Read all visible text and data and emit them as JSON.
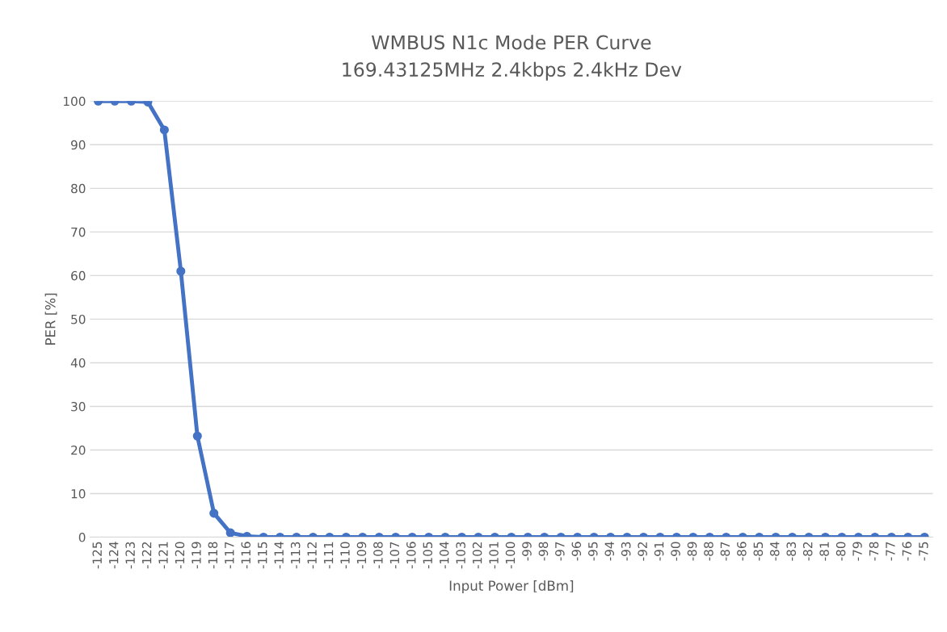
{
  "chart_data": {
    "type": "line",
    "title": "WMBUS N1c Mode PER Curve\n169.43125MHz 2.4kbps 2.4kHz Dev",
    "xlabel": "Input Power [dBm]",
    "ylabel": "PER [%]",
    "categories": [
      "-125",
      "-124",
      "-123",
      "-122",
      "-121",
      "-120",
      "-119",
      "-118",
      "-117",
      "-116",
      "-115",
      "-114",
      "-113",
      "-112",
      "-111",
      "-110",
      "-109",
      "-108",
      "-107",
      "-106",
      "-105",
      "-104",
      "-103",
      "-102",
      "-101",
      "-100",
      "-99",
      "-98",
      "-97",
      "-96",
      "-95",
      "-94",
      "-93",
      "-92",
      "-91",
      "-90",
      "-89",
      "-88",
      "-87",
      "-86",
      "-85",
      "-84",
      "-83",
      "-82",
      "-81",
      "-80",
      "-79",
      "-78",
      "-77",
      "-76",
      "-75"
    ],
    "series": [
      {
        "color": "#4472c4",
        "values": [
          100,
          100,
          100,
          99.8,
          93.4,
          61,
          23.2,
          5.5,
          1,
          0.2,
          0,
          0,
          0,
          0,
          0,
          0,
          0,
          0,
          0,
          0,
          0,
          0,
          0,
          0,
          0,
          0,
          0,
          0,
          0,
          0,
          0,
          0,
          0,
          0,
          0,
          0,
          0,
          0,
          0,
          0,
          0,
          0,
          0,
          0,
          0,
          0,
          0,
          0,
          0,
          0,
          0
        ]
      }
    ],
    "ylim": [
      0,
      100
    ],
    "yticks": [
      0,
      10,
      20,
      30,
      40,
      50,
      60,
      70,
      80,
      90,
      100
    ],
    "grid": "y",
    "legend": false,
    "marker": "circle",
    "line_style": "solid"
  }
}
